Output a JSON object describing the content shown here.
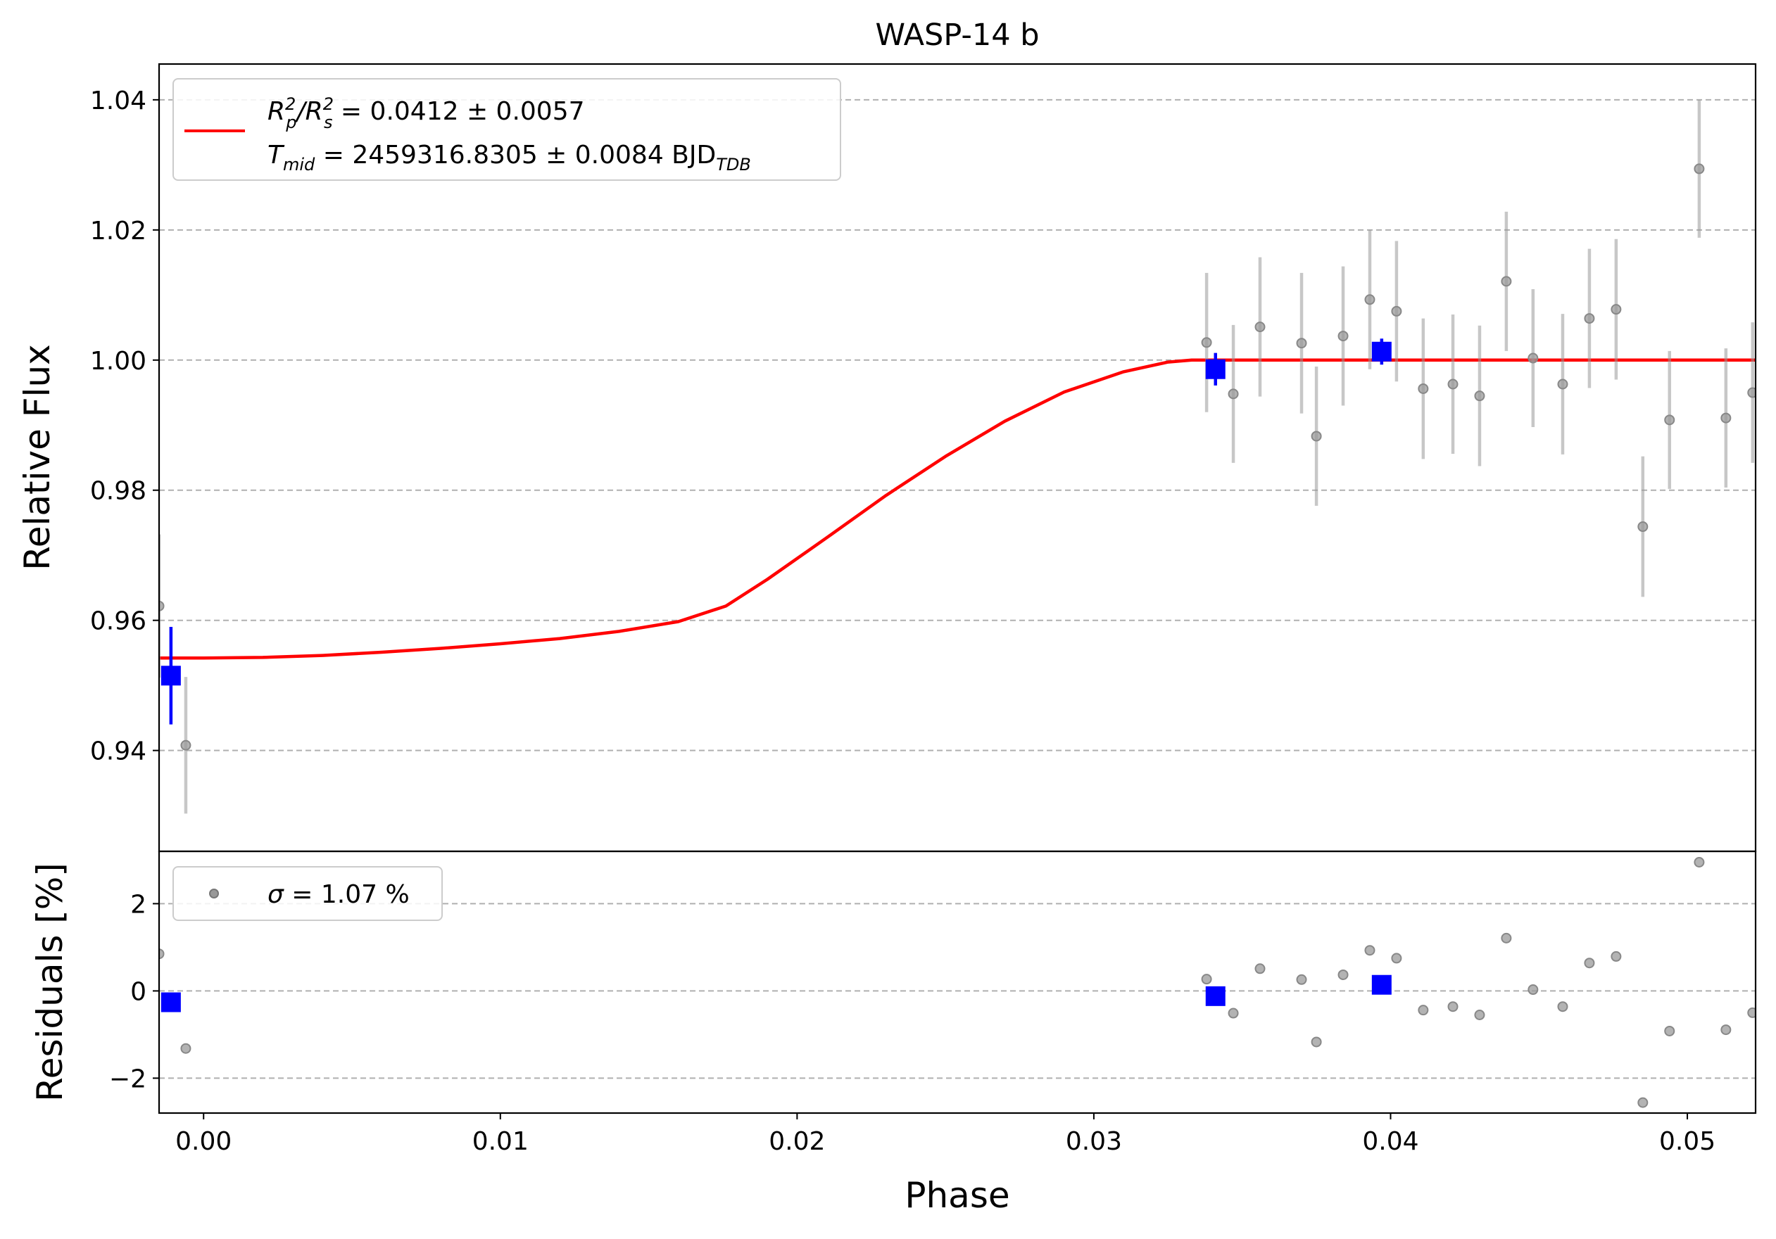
{
  "chart_data": [
    {
      "type": "scatter",
      "panel": "main",
      "title": "WASP-14 b",
      "xlabel": "Phase",
      "ylabel": "Relative Flux",
      "xlim": [
        -0.0015,
        0.0523
      ],
      "ylim": [
        0.9245,
        1.0455
      ],
      "x_ticks": [
        0.0,
        0.01,
        0.02,
        0.03,
        0.04,
        0.05
      ],
      "x_tick_labels": [
        "0.00",
        "0.01",
        "0.02",
        "0.03",
        "0.04",
        "0.05"
      ],
      "y_ticks": [
        0.94,
        0.96,
        0.98,
        1.0,
        1.02,
        1.04
      ],
      "y_tick_labels": [
        "0.94",
        "0.96",
        "0.98",
        "1.00",
        "1.02",
        "1.04"
      ],
      "grid": "horizontal dashed",
      "legend": {
        "placement": "top-left",
        "line_color": "#ff0000",
        "line1": {
          "base": "R",
          "sub1": "p",
          "sup1": "2",
          "slash": "/R",
          "sub2": "s",
          "sup2": "2",
          "rest": " = 0.0412 ± 0.0057"
        },
        "line2": {
          "base": "T",
          "sub1": "mid",
          "rest": " = 2459316.8305 ± 0.0084 BJD",
          "sub2": "TDB"
        }
      },
      "model": {
        "name": "transit model",
        "color": "#ff0000",
        "points": [
          [
            -0.0015,
            0.9542
          ],
          [
            0.0,
            0.9542
          ],
          [
            0.002,
            0.9543
          ],
          [
            0.004,
            0.9546
          ],
          [
            0.006,
            0.9551
          ],
          [
            0.008,
            0.9557
          ],
          [
            0.01,
            0.9564
          ],
          [
            0.012,
            0.9572
          ],
          [
            0.014,
            0.9583
          ],
          [
            0.016,
            0.9598
          ],
          [
            0.0176,
            0.9622
          ],
          [
            0.019,
            0.9663
          ],
          [
            0.021,
            0.9727
          ],
          [
            0.023,
            0.9792
          ],
          [
            0.025,
            0.9852
          ],
          [
            0.027,
            0.9906
          ],
          [
            0.029,
            0.9951
          ],
          [
            0.031,
            0.9982
          ],
          [
            0.0325,
            0.9997
          ],
          [
            0.0333,
            1.0
          ],
          [
            0.0523,
            1.0
          ]
        ]
      },
      "unbinned": {
        "color": "#999999",
        "x": [
          -0.0015,
          -0.0006,
          0.0338,
          0.0347,
          0.0356,
          0.037,
          0.0375,
          0.0384,
          0.0393,
          0.0402,
          0.0411,
          0.0421,
          0.043,
          0.0439,
          0.0448,
          0.0458,
          0.0467,
          0.0476,
          0.0485,
          0.0494,
          0.0504,
          0.0513,
          0.0522
        ],
        "y": [
          0.9622,
          0.9408,
          1.0027,
          0.9948,
          1.0051,
          1.0026,
          0.9883,
          1.0037,
          1.0093,
          1.0075,
          0.9956,
          0.9963,
          0.9945,
          1.0121,
          1.0003,
          0.9963,
          1.0064,
          1.0078,
          0.9744,
          0.9908,
          1.0294,
          0.9911,
          0.995
        ],
        "err": [
          0.011,
          0.0105,
          0.0107,
          0.0106,
          0.0107,
          0.0108,
          0.0107,
          0.0107,
          0.0107,
          0.0108,
          0.0108,
          0.0107,
          0.0108,
          0.0107,
          0.0106,
          0.0108,
          0.0107,
          0.0108,
          0.0108,
          0.0106,
          0.0106,
          0.0107,
          0.0108
        ]
      },
      "binned": {
        "color": "#0000ff",
        "x": [
          -0.0011,
          0.0341,
          0.0397
        ],
        "y": [
          0.9515,
          0.9986,
          1.0013
        ],
        "err": [
          0.0075,
          0.0025,
          0.002
        ]
      }
    },
    {
      "type": "scatter",
      "panel": "residuals",
      "xlabel": "Phase",
      "ylabel": "Residuals [%]",
      "xlim": [
        -0.0015,
        0.0523
      ],
      "ylim": [
        -2.8,
        3.2
      ],
      "y_ticks": [
        -2,
        0,
        2
      ],
      "y_tick_labels": [
        "−2",
        "0",
        "2"
      ],
      "grid": "horizontal dashed",
      "legend": {
        "placement": "top-left",
        "marker_color": "#999999",
        "symbol": "σ",
        "rest": " = 1.07 %"
      },
      "unbinned": {
        "color": "#999999",
        "x": [
          -0.0015,
          -0.0006,
          0.0338,
          0.0347,
          0.0356,
          0.037,
          0.0375,
          0.0384,
          0.0393,
          0.0402,
          0.0411,
          0.0421,
          0.043,
          0.0439,
          0.0448,
          0.0458,
          0.0467,
          0.0476,
          0.0485,
          0.0494,
          0.0504,
          0.0513,
          0.0522
        ],
        "y": [
          0.85,
          -1.32,
          0.27,
          -0.51,
          0.51,
          0.26,
          -1.17,
          0.37,
          0.93,
          0.75,
          -0.44,
          -0.36,
          -0.55,
          1.21,
          0.03,
          -0.36,
          0.64,
          0.79,
          -2.56,
          -0.92,
          2.95,
          -0.89,
          -0.5
        ]
      },
      "binned": {
        "color": "#0000ff",
        "x": [
          -0.0011,
          0.0341,
          0.0397
        ],
        "y": [
          -0.26,
          -0.12,
          0.14
        ]
      }
    }
  ]
}
